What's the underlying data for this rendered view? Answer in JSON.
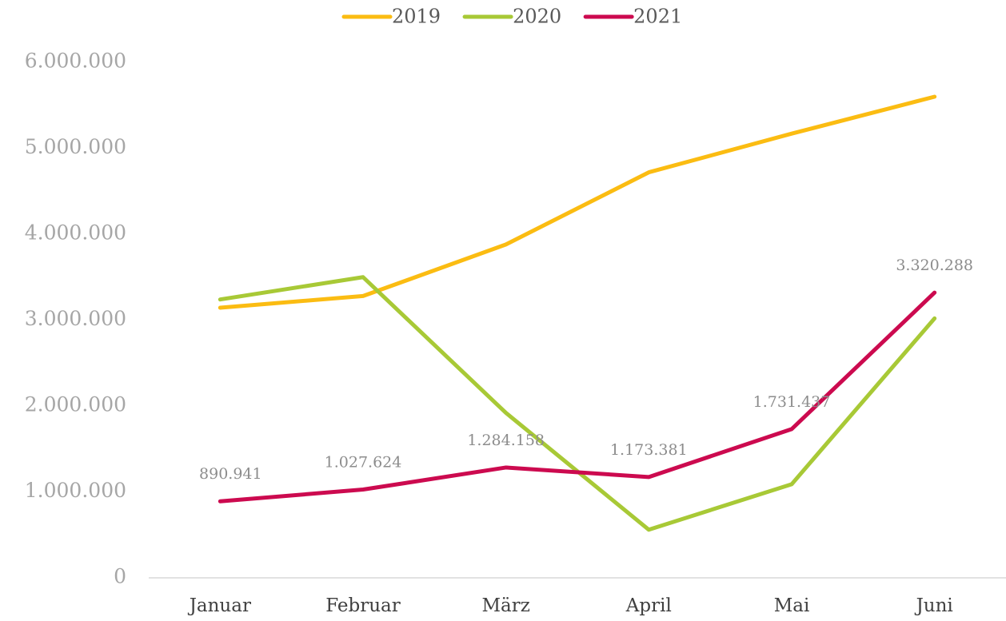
{
  "chart_data": {
    "type": "line",
    "categories": [
      "Januar",
      "Februar",
      "März",
      "April",
      "Mai",
      "Juni"
    ],
    "series": [
      {
        "name": "2019",
        "color": "#fbbc12",
        "values": [
          3144000,
          3280000,
          3880000,
          4720000,
          5170000,
          5600000
        ]
      },
      {
        "name": "2020",
        "color": "#a8c936",
        "values": [
          3240000,
          3500000,
          1920000,
          560000,
          1090000,
          3020000
        ]
      },
      {
        "name": "2021",
        "color": "#cc0a4f",
        "values": [
          890941,
          1027624,
          1284158,
          1173381,
          1731437,
          3320288
        ],
        "value_labels": [
          "890.941",
          "1.027.624",
          "1.284.158",
          "1.173.381",
          "1.731.437",
          "3.320.288"
        ]
      }
    ],
    "ylim": [
      0,
      6000000
    ],
    "yticks": [
      0,
      {
        "value": 1000000,
        "label": "1.000.000"
      },
      {
        "value": 2000000,
        "label": "2.000.000"
      },
      {
        "value": 3000000,
        "label": "3.000.000"
      },
      {
        "value": 4000000,
        "label": "4.000.000"
      },
      {
        "value": 5000000,
        "label": "5.000.000"
      },
      {
        "value": 6000000,
        "label": "6.000.000"
      }
    ],
    "grid": false,
    "legend": "top"
  }
}
